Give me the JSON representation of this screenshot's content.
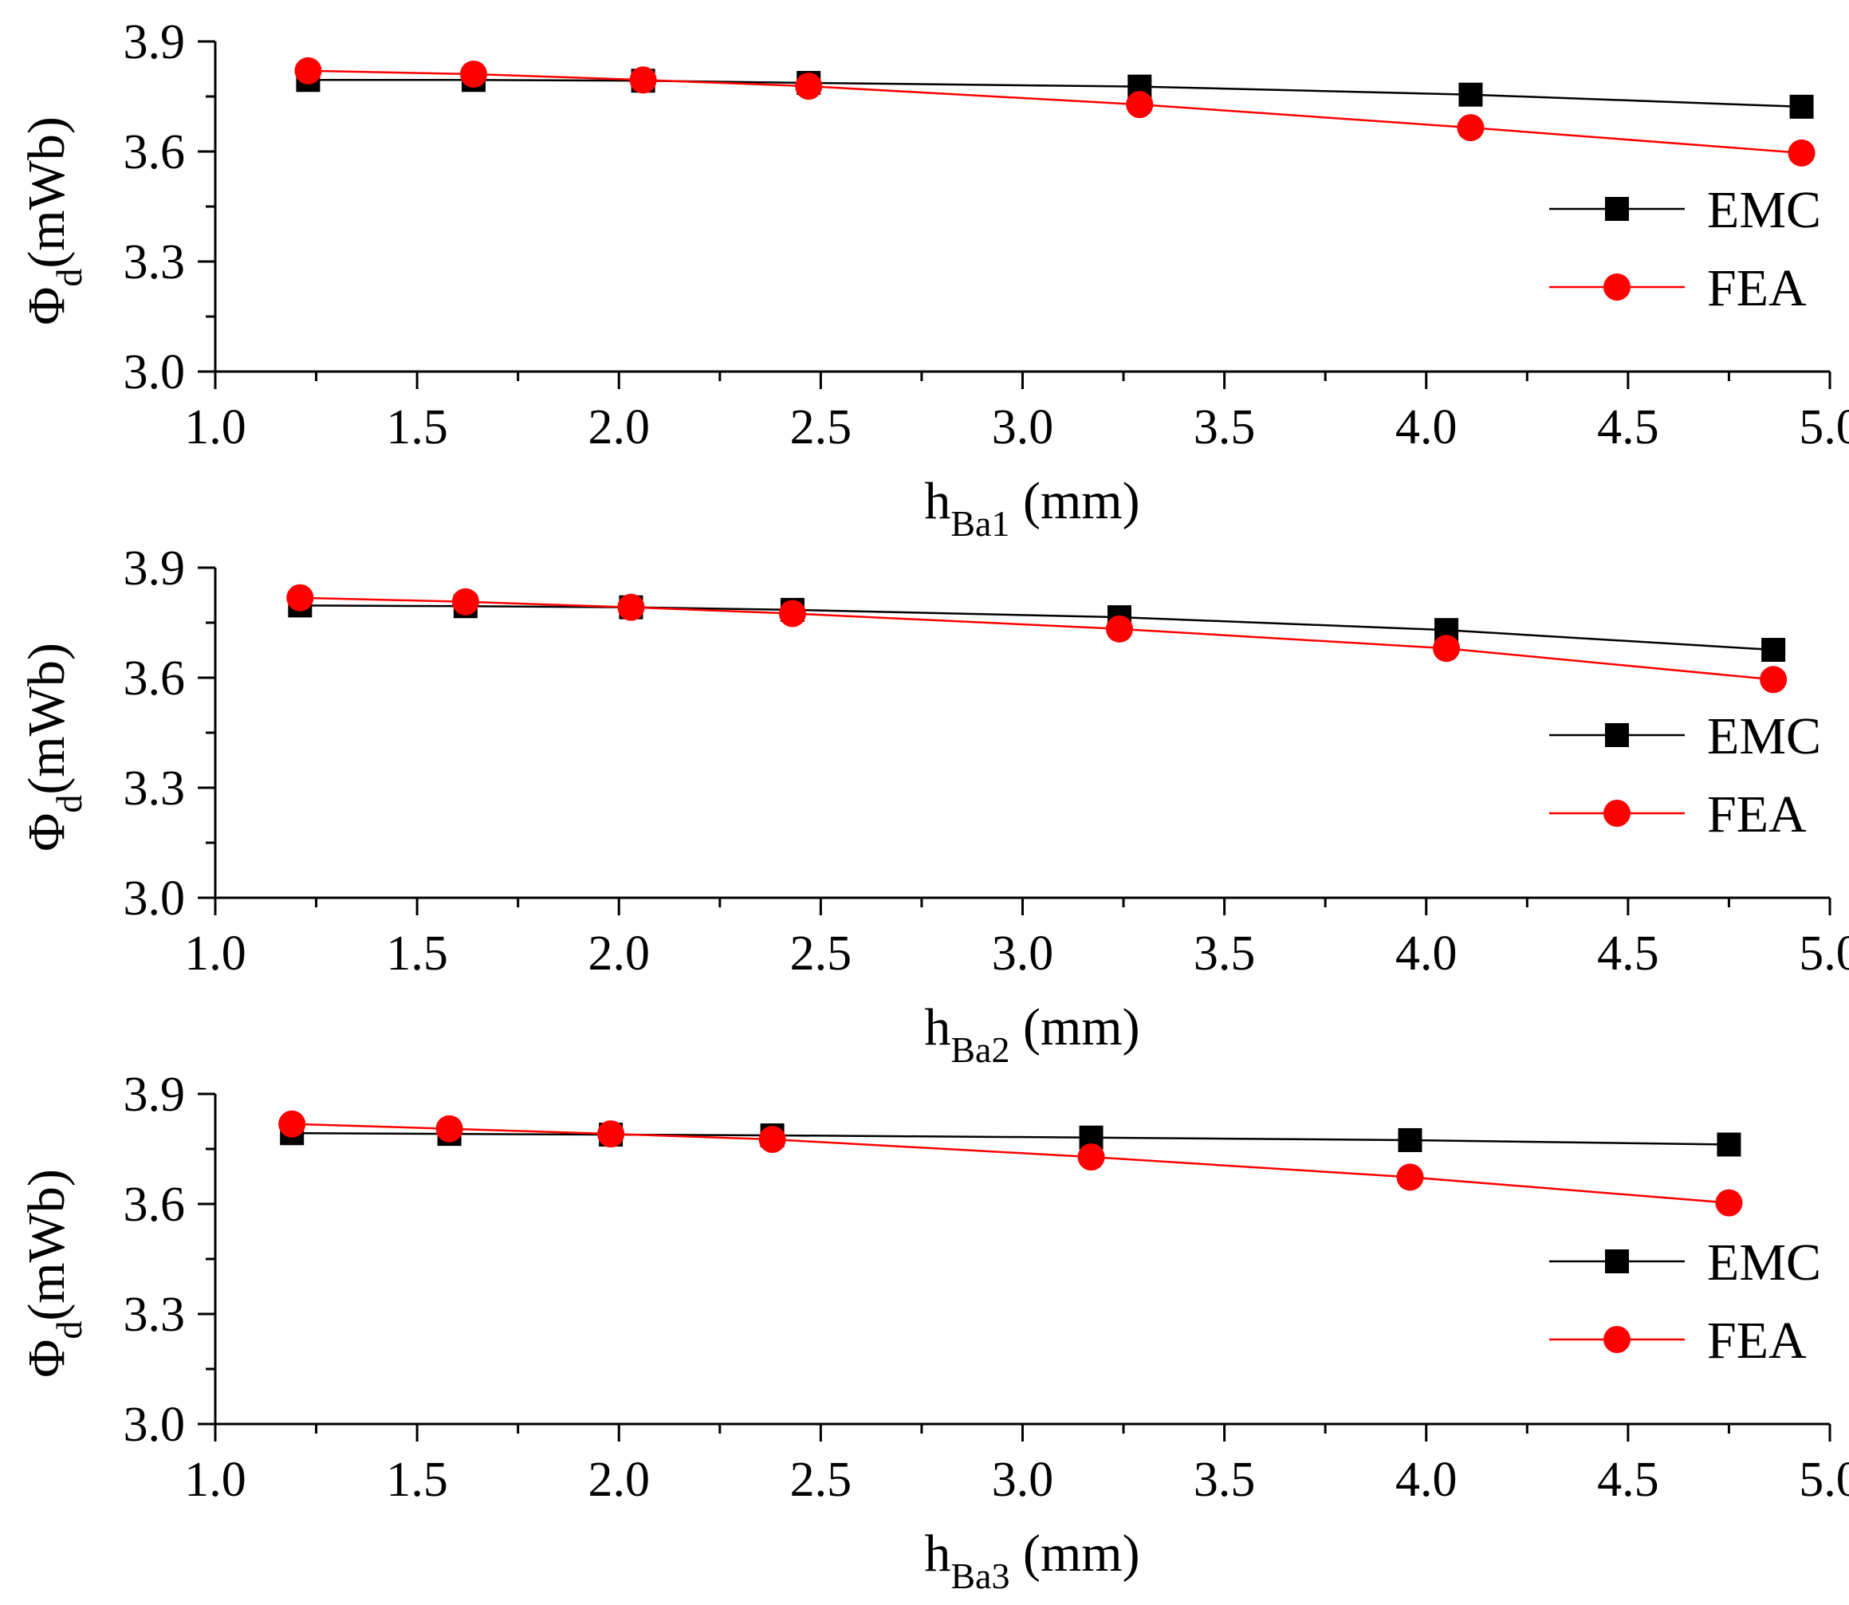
{
  "colors": {
    "EMC": "#000000",
    "FEA": "#ff0000"
  },
  "chart_data": [
    {
      "type": "line",
      "ylabel": {
        "symbol": "Φ",
        "subscript": "d",
        "unit": "(mWb)"
      },
      "xlabel": {
        "main": "h",
        "subscript": "Ba1",
        "unit": "(mm)"
      },
      "xlim": [
        1.0,
        5.0
      ],
      "ylim": [
        3.0,
        3.9
      ],
      "xticks": [
        "1.0",
        "1.5",
        "2.0",
        "2.5",
        "3.0",
        "3.5",
        "4.0",
        "4.5",
        "5.0"
      ],
      "yticks": [
        "3.0",
        "3.3",
        "3.6",
        "3.9"
      ],
      "legend": "right",
      "series": [
        {
          "name": "EMC",
          "marker": "square",
          "x": [
            1.23,
            1.64,
            2.06,
            2.47,
            3.29,
            4.11,
            4.93
          ],
          "y": [
            3.795,
            3.795,
            3.793,
            3.787,
            3.777,
            3.755,
            3.722
          ]
        },
        {
          "name": "FEA",
          "marker": "circle",
          "x": [
            1.23,
            1.64,
            2.06,
            2.47,
            3.29,
            4.11,
            4.93
          ],
          "y": [
            3.82,
            3.811,
            3.795,
            3.778,
            3.728,
            3.665,
            3.596
          ]
        }
      ]
    },
    {
      "type": "line",
      "ylabel": {
        "symbol": "Φ",
        "subscript": "d",
        "unit": "(mWb)"
      },
      "xlabel": {
        "main": "h",
        "subscript": "Ba2",
        "unit": "(mm)"
      },
      "xlim": [
        1.0,
        5.0
      ],
      "ylim": [
        3.0,
        3.9
      ],
      "xticks": [
        "1.0",
        "1.5",
        "2.0",
        "2.5",
        "3.0",
        "3.5",
        "4.0",
        "4.5",
        "5.0"
      ],
      "yticks": [
        "3.0",
        "3.3",
        "3.6",
        "3.9"
      ],
      "legend": "right",
      "series": [
        {
          "name": "EMC",
          "marker": "square",
          "x": [
            1.21,
            1.62,
            2.03,
            2.43,
            3.24,
            4.05,
            4.86
          ],
          "y": [
            3.797,
            3.795,
            3.792,
            3.785,
            3.765,
            3.73,
            3.676
          ]
        },
        {
          "name": "FEA",
          "marker": "circle",
          "x": [
            1.21,
            1.62,
            2.03,
            2.43,
            3.24,
            4.05,
            4.86
          ],
          "y": [
            3.818,
            3.807,
            3.792,
            3.775,
            3.733,
            3.68,
            3.595
          ]
        }
      ]
    },
    {
      "type": "line",
      "ylabel": {
        "symbol": "Φ",
        "subscript": "d",
        "unit": "(mWb)"
      },
      "xlabel": {
        "main": "h",
        "subscript": "Ba3",
        "unit": "(mm)"
      },
      "xlim": [
        1.0,
        5.0
      ],
      "ylim": [
        3.0,
        3.9
      ],
      "xticks": [
        "1.0",
        "1.5",
        "2.0",
        "2.5",
        "3.0",
        "3.5",
        "4.0",
        "4.5",
        "5.0"
      ],
      "yticks": [
        "3.0",
        "3.3",
        "3.6",
        "3.9"
      ],
      "legend": "right",
      "series": [
        {
          "name": "EMC",
          "marker": "square",
          "x": [
            1.19,
            1.58,
            1.98,
            2.38,
            3.17,
            3.96,
            4.75
          ],
          "y": [
            3.793,
            3.791,
            3.789,
            3.787,
            3.781,
            3.774,
            3.762
          ]
        },
        {
          "name": "FEA",
          "marker": "circle",
          "x": [
            1.19,
            1.58,
            1.98,
            2.38,
            3.17,
            3.96,
            4.75
          ],
          "y": [
            3.818,
            3.805,
            3.791,
            3.776,
            3.728,
            3.673,
            3.603
          ]
        }
      ]
    }
  ]
}
